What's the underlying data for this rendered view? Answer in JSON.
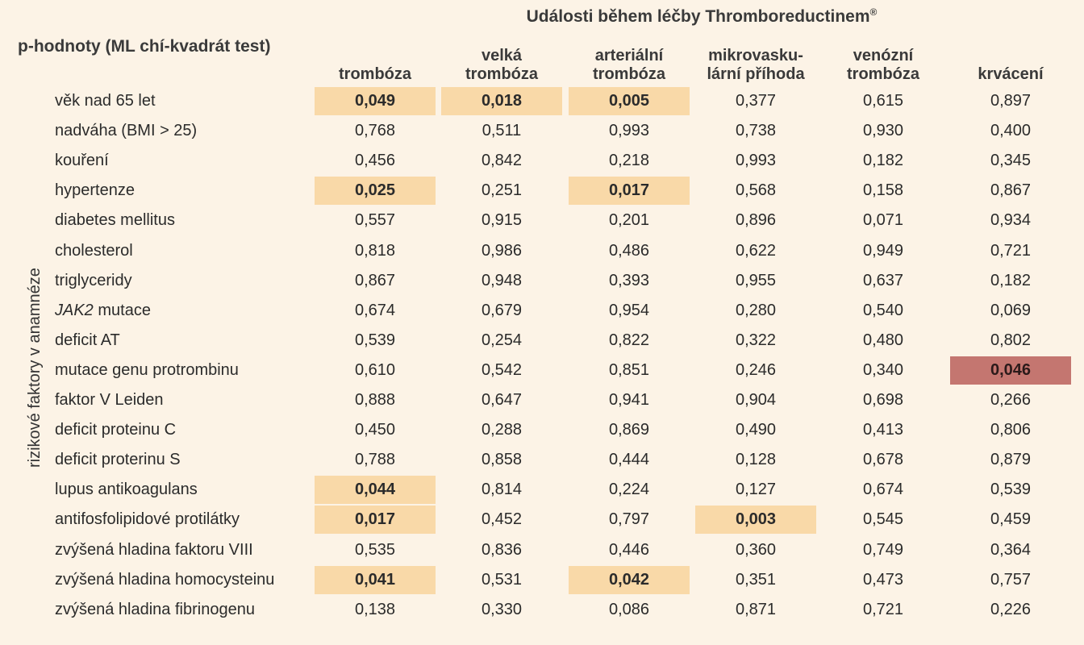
{
  "header": {
    "group_title": "Události během léčby Thromboreductinem",
    "group_title_sup": "®",
    "pvalue_title": "p-hodnoty (ML chí-kvadrát test)",
    "row_axis_label": "rizikové faktory v anamnéze"
  },
  "columns": [
    "trombóza",
    "velká\ntrombóza",
    "arteriální\ntrombóza",
    "mikrovasku-\nlární příhoda",
    "venózní\ntrombóza",
    "krvácení"
  ],
  "rows": [
    {
      "label": "věk nad 65 let",
      "values": [
        "0,049",
        "0,018",
        "0,005",
        "0,377",
        "0,615",
        "0,897"
      ],
      "sig": [
        1,
        1,
        1,
        0,
        0,
        0
      ]
    },
    {
      "label": "nadváha (BMI > 25)",
      "values": [
        "0,768",
        "0,511",
        "0,993",
        "0,738",
        "0,930",
        "0,400"
      ],
      "sig": [
        0,
        0,
        0,
        0,
        0,
        0
      ]
    },
    {
      "label": "kouření",
      "values": [
        "0,456",
        "0,842",
        "0,218",
        "0,993",
        "0,182",
        "0,345"
      ],
      "sig": [
        0,
        0,
        0,
        0,
        0,
        0
      ]
    },
    {
      "label": "hypertenze",
      "values": [
        "0,025",
        "0,251",
        "0,017",
        "0,568",
        "0,158",
        "0,867"
      ],
      "sig": [
        1,
        0,
        1,
        0,
        0,
        0
      ]
    },
    {
      "label": "diabetes mellitus",
      "values": [
        "0,557",
        "0,915",
        "0,201",
        "0,896",
        "0,071",
        "0,934"
      ],
      "sig": [
        0,
        0,
        0,
        0,
        0,
        0
      ]
    },
    {
      "label": "cholesterol",
      "values": [
        "0,818",
        "0,986",
        "0,486",
        "0,622",
        "0,949",
        "0,721"
      ],
      "sig": [
        0,
        0,
        0,
        0,
        0,
        0
      ]
    },
    {
      "label": "triglyceridy",
      "values": [
        "0,867",
        "0,948",
        "0,393",
        "0,955",
        "0,637",
        "0,182"
      ],
      "sig": [
        0,
        0,
        0,
        0,
        0,
        0
      ]
    },
    {
      "label_italic": "JAK2",
      "label": " mutace",
      "values": [
        "0,674",
        "0,679",
        "0,954",
        "0,280",
        "0,540",
        "0,069"
      ],
      "sig": [
        0,
        0,
        0,
        0,
        0,
        0
      ]
    },
    {
      "label": "deficit AT",
      "values": [
        "0,539",
        "0,254",
        "0,822",
        "0,322",
        "0,480",
        "0,802"
      ],
      "sig": [
        0,
        0,
        0,
        0,
        0,
        0
      ]
    },
    {
      "label": "mutace genu protrombinu",
      "values": [
        "0,610",
        "0,542",
        "0,851",
        "0,246",
        "0,340",
        "0,046"
      ],
      "sig": [
        0,
        0,
        0,
        0,
        0,
        2
      ]
    },
    {
      "label": "faktor V Leiden",
      "values": [
        "0,888",
        "0,647",
        "0,941",
        "0,904",
        "0,698",
        "0,266"
      ],
      "sig": [
        0,
        0,
        0,
        0,
        0,
        0
      ]
    },
    {
      "label": "deficit proteinu C",
      "values": [
        "0,450",
        "0,288",
        "0,869",
        "0,490",
        "0,413",
        "0,806"
      ],
      "sig": [
        0,
        0,
        0,
        0,
        0,
        0
      ]
    },
    {
      "label": "deficit proterinu S",
      "values": [
        "0,788",
        "0,858",
        "0,444",
        "0,128",
        "0,678",
        "0,879"
      ],
      "sig": [
        0,
        0,
        0,
        0,
        0,
        0
      ]
    },
    {
      "label": "lupus antikoagulans",
      "values": [
        "0,044",
        "0,814",
        "0,224",
        "0,127",
        "0,674",
        "0,539"
      ],
      "sig": [
        1,
        0,
        0,
        0,
        0,
        0
      ]
    },
    {
      "label": "antifosfolipidové protilátky",
      "values": [
        "0,017",
        "0,452",
        "0,797",
        "0,003",
        "0,545",
        "0,459"
      ],
      "sig": [
        1,
        0,
        0,
        1,
        0,
        0
      ]
    },
    {
      "label": "zvýšená hladina faktoru VIII",
      "values": [
        "0,535",
        "0,836",
        "0,446",
        "0,360",
        "0,749",
        "0,364"
      ],
      "sig": [
        0,
        0,
        0,
        0,
        0,
        0
      ]
    },
    {
      "label": "zvýšená hladina homocysteinu",
      "values": [
        "0,041",
        "0,531",
        "0,042",
        "0,351",
        "0,473",
        "0,757"
      ],
      "sig": [
        1,
        0,
        1,
        0,
        0,
        0
      ]
    },
    {
      "label": "zvýšená hladina fibrinogenu",
      "values": [
        "0,138",
        "0,330",
        "0,086",
        "0,871",
        "0,721",
        "0,226"
      ],
      "sig": [
        0,
        0,
        0,
        0,
        0,
        0
      ]
    }
  ],
  "colors": {
    "background": "#fcf3e6",
    "significant": "#f9d9a8",
    "significant_bleeding": "#c47670"
  }
}
